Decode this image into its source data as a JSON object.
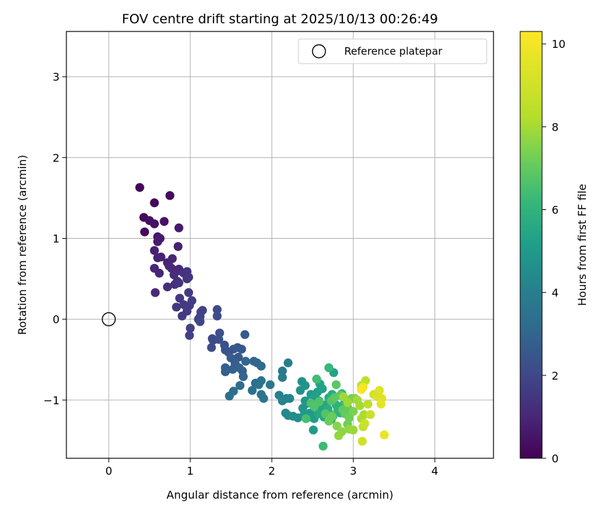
{
  "chart_data": {
    "type": "scatter",
    "title": "FOV centre drift starting at 2025/10/13 00:26:49",
    "xlabel": "Angular distance from reference (arcmin)",
    "ylabel": "Rotation from reference (arcmin)",
    "xlim": [
      -0.52,
      4.72
    ],
    "ylim": [
      -1.72,
      3.56
    ],
    "xticks": [
      0,
      1,
      2,
      3,
      4
    ],
    "yticks": [
      -1,
      0,
      1,
      2,
      3
    ],
    "ytick_labels": [
      "−1",
      "0",
      "1",
      "2",
      "3"
    ],
    "grid": true,
    "legend": {
      "position": "top-right",
      "entries": [
        "Reference platepar"
      ]
    },
    "reference_point": {
      "x": 0,
      "y": 0,
      "label": "Reference platepar"
    },
    "colorbar": {
      "label": "Hours from first FF file",
      "range": [
        0,
        10.3
      ],
      "ticks": [
        0,
        2,
        4,
        6,
        8,
        10
      ],
      "colormap": "viridis"
    },
    "points": [
      {
        "x": 0.38,
        "y": 1.63,
        "h": 0.1
      },
      {
        "x": 0.43,
        "y": 1.26,
        "h": 0.2
      },
      {
        "x": 0.44,
        "y": 1.08,
        "h": 0.3
      },
      {
        "x": 0.5,
        "y": 1.22,
        "h": 0.4
      },
      {
        "x": 0.56,
        "y": 1.44,
        "h": 0.2
      },
      {
        "x": 0.56,
        "y": 1.18,
        "h": 0.5
      },
      {
        "x": 0.6,
        "y": 1.02,
        "h": 0.6
      },
      {
        "x": 0.63,
        "y": 1.0,
        "h": 0.7
      },
      {
        "x": 0.6,
        "y": 0.96,
        "h": 0.8
      },
      {
        "x": 0.68,
        "y": 1.21,
        "h": 0.5
      },
      {
        "x": 0.75,
        "y": 1.53,
        "h": 0.3
      },
      {
        "x": 0.86,
        "y": 1.13,
        "h": 0.7
      },
      {
        "x": 0.56,
        "y": 0.85,
        "h": 0.9
      },
      {
        "x": 0.6,
        "y": 0.76,
        "h": 1.0
      },
      {
        "x": 0.64,
        "y": 0.77,
        "h": 1.0
      },
      {
        "x": 0.56,
        "y": 0.63,
        "h": 1.1
      },
      {
        "x": 0.62,
        "y": 0.57,
        "h": 1.1
      },
      {
        "x": 0.57,
        "y": 0.33,
        "h": 1.2
      },
      {
        "x": 0.72,
        "y": 0.7,
        "h": 1.0
      },
      {
        "x": 0.74,
        "y": 0.66,
        "h": 1.1
      },
      {
        "x": 0.78,
        "y": 0.75,
        "h": 1.1
      },
      {
        "x": 0.77,
        "y": 0.63,
        "h": 1.2
      },
      {
        "x": 0.85,
        "y": 0.9,
        "h": 0.9
      },
      {
        "x": 0.8,
        "y": 0.55,
        "h": 1.3
      },
      {
        "x": 0.84,
        "y": 0.47,
        "h": 1.4
      },
      {
        "x": 0.81,
        "y": 0.43,
        "h": 1.4
      },
      {
        "x": 0.72,
        "y": 0.4,
        "h": 1.3
      },
      {
        "x": 0.87,
        "y": 0.6,
        "h": 1.3
      },
      {
        "x": 0.86,
        "y": 0.62,
        "h": 1.2
      },
      {
        "x": 0.92,
        "y": 0.57,
        "h": 1.5
      },
      {
        "x": 0.96,
        "y": 0.59,
        "h": 1.5
      },
      {
        "x": 0.98,
        "y": 0.52,
        "h": 1.6
      },
      {
        "x": 0.96,
        "y": 0.5,
        "h": 1.6
      },
      {
        "x": 0.86,
        "y": 0.45,
        "h": 1.5
      },
      {
        "x": 0.87,
        "y": 0.26,
        "h": 1.6
      },
      {
        "x": 0.98,
        "y": 0.33,
        "h": 1.7
      },
      {
        "x": 0.92,
        "y": 0.18,
        "h": 1.7
      },
      {
        "x": 0.83,
        "y": 0.15,
        "h": 1.7
      },
      {
        "x": 0.9,
        "y": 0.04,
        "h": 1.8
      },
      {
        "x": 0.96,
        "y": 0.1,
        "h": 1.8
      },
      {
        "x": 0.99,
        "y": 0.17,
        "h": 1.8
      },
      {
        "x": 1.02,
        "y": 0.23,
        "h": 1.9
      },
      {
        "x": 1.0,
        "y": -0.11,
        "h": 2.0
      },
      {
        "x": 0.99,
        "y": -0.2,
        "h": 2.0
      },
      {
        "x": 1.1,
        "y": 0.0,
        "h": 2.0
      },
      {
        "x": 1.12,
        "y": 0.03,
        "h": 2.1
      },
      {
        "x": 1.13,
        "y": 0.09,
        "h": 2.1
      },
      {
        "x": 1.15,
        "y": 0.11,
        "h": 2.1
      },
      {
        "x": 1.12,
        "y": -0.03,
        "h": 2.2
      },
      {
        "x": 1.27,
        "y": -0.24,
        "h": 2.3
      },
      {
        "x": 1.28,
        "y": -0.26,
        "h": 2.3
      },
      {
        "x": 1.26,
        "y": -0.35,
        "h": 2.4
      },
      {
        "x": 1.33,
        "y": 0.12,
        "h": 2.3
      },
      {
        "x": 1.33,
        "y": 0.04,
        "h": 2.4
      },
      {
        "x": 1.36,
        "y": -0.17,
        "h": 2.5
      },
      {
        "x": 1.35,
        "y": -0.25,
        "h": 2.5
      },
      {
        "x": 1.42,
        "y": -0.32,
        "h": 2.6
      },
      {
        "x": 1.43,
        "y": -0.38,
        "h": 2.6
      },
      {
        "x": 1.47,
        "y": -0.41,
        "h": 2.7
      },
      {
        "x": 1.53,
        "y": -0.37,
        "h": 2.7
      },
      {
        "x": 1.58,
        "y": -0.35,
        "h": 2.8
      },
      {
        "x": 1.63,
        "y": -0.37,
        "h": 2.8
      },
      {
        "x": 1.67,
        "y": -0.19,
        "h": 2.9
      },
      {
        "x": 1.59,
        "y": -0.47,
        "h": 2.9
      },
      {
        "x": 1.5,
        "y": -0.48,
        "h": 3.0
      },
      {
        "x": 1.55,
        "y": -0.55,
        "h": 3.0
      },
      {
        "x": 1.43,
        "y": -0.6,
        "h": 3.1
      },
      {
        "x": 1.43,
        "y": -0.65,
        "h": 3.1
      },
      {
        "x": 1.52,
        "y": -0.62,
        "h": 3.1
      },
      {
        "x": 1.6,
        "y": -0.6,
        "h": 3.2
      },
      {
        "x": 1.64,
        "y": -0.64,
        "h": 3.2
      },
      {
        "x": 1.65,
        "y": -0.71,
        "h": 3.3
      },
      {
        "x": 1.68,
        "y": -0.52,
        "h": 3.3
      },
      {
        "x": 1.78,
        "y": -0.52,
        "h": 3.4
      },
      {
        "x": 1.82,
        "y": -0.54,
        "h": 3.4
      },
      {
        "x": 1.87,
        "y": -0.58,
        "h": 3.5
      },
      {
        "x": 1.61,
        "y": -0.82,
        "h": 3.6
      },
      {
        "x": 1.53,
        "y": -0.89,
        "h": 3.7
      },
      {
        "x": 1.48,
        "y": -0.95,
        "h": 3.8
      },
      {
        "x": 1.8,
        "y": -0.79,
        "h": 3.7
      },
      {
        "x": 1.76,
        "y": -0.88,
        "h": 3.8
      },
      {
        "x": 1.87,
        "y": -0.76,
        "h": 3.9
      },
      {
        "x": 1.84,
        "y": -0.81,
        "h": 3.9
      },
      {
        "x": 1.87,
        "y": -0.93,
        "h": 4.0
      },
      {
        "x": 1.9,
        "y": -0.98,
        "h": 4.0
      },
      {
        "x": 1.98,
        "y": -0.81,
        "h": 4.1
      },
      {
        "x": 2.13,
        "y": -0.64,
        "h": 4.2
      },
      {
        "x": 2.13,
        "y": -0.72,
        "h": 4.3
      },
      {
        "x": 2.2,
        "y": -0.54,
        "h": 4.4
      },
      {
        "x": 2.09,
        "y": -0.94,
        "h": 4.5
      },
      {
        "x": 2.13,
        "y": -1.01,
        "h": 4.6
      },
      {
        "x": 2.18,
        "y": -0.98,
        "h": 4.7
      },
      {
        "x": 2.22,
        "y": -0.98,
        "h": 4.7
      },
      {
        "x": 2.17,
        "y": -1.16,
        "h": 4.8
      },
      {
        "x": 2.2,
        "y": -1.19,
        "h": 4.9
      },
      {
        "x": 2.26,
        "y": -1.2,
        "h": 5.0
      },
      {
        "x": 2.32,
        "y": -1.22,
        "h": 5.0
      },
      {
        "x": 2.37,
        "y": -0.77,
        "h": 5.1
      },
      {
        "x": 2.35,
        "y": -0.88,
        "h": 5.2
      },
      {
        "x": 2.41,
        "y": -0.82,
        "h": 5.3
      },
      {
        "x": 2.38,
        "y": -1.1,
        "h": 5.3
      },
      {
        "x": 2.41,
        "y": -1.01,
        "h": 5.4
      },
      {
        "x": 2.44,
        "y": -1.04,
        "h": 5.4
      },
      {
        "x": 2.4,
        "y": -1.17,
        "h": 5.5
      },
      {
        "x": 2.47,
        "y": -1.16,
        "h": 5.5
      },
      {
        "x": 2.48,
        "y": -1.21,
        "h": 5.6
      },
      {
        "x": 2.51,
        "y": -1.37,
        "h": 5.6
      },
      {
        "x": 2.52,
        "y": -1.23,
        "h": 5.7
      },
      {
        "x": 2.48,
        "y": -0.93,
        "h": 5.7
      },
      {
        "x": 2.53,
        "y": -0.95,
        "h": 5.8
      },
      {
        "x": 2.56,
        "y": -0.9,
        "h": 5.8
      },
      {
        "x": 2.59,
        "y": -0.8,
        "h": 5.9
      },
      {
        "x": 2.62,
        "y": -0.86,
        "h": 5.9
      },
      {
        "x": 2.58,
        "y": -1.01,
        "h": 6.0
      },
      {
        "x": 2.6,
        "y": -1.08,
        "h": 6.0
      },
      {
        "x": 2.62,
        "y": -1.13,
        "h": 6.1
      },
      {
        "x": 2.66,
        "y": -1.06,
        "h": 6.1
      },
      {
        "x": 2.57,
        "y": -1.17,
        "h": 6.2
      },
      {
        "x": 2.64,
        "y": -1.21,
        "h": 6.2
      },
      {
        "x": 2.7,
        "y": -0.97,
        "h": 6.3
      },
      {
        "x": 2.74,
        "y": -0.93,
        "h": 6.3
      },
      {
        "x": 2.69,
        "y": -1.11,
        "h": 6.4
      },
      {
        "x": 2.71,
        "y": -1.17,
        "h": 6.4
      },
      {
        "x": 2.75,
        "y": -1.2,
        "h": 6.5
      },
      {
        "x": 2.73,
        "y": -1.24,
        "h": 6.5
      },
      {
        "x": 2.79,
        "y": -1.06,
        "h": 6.6
      },
      {
        "x": 2.81,
        "y": -1.12,
        "h": 6.6
      },
      {
        "x": 2.84,
        "y": -1.16,
        "h": 6.7
      },
      {
        "x": 2.86,
        "y": -0.92,
        "h": 6.7
      },
      {
        "x": 2.89,
        "y": -1.04,
        "h": 6.8
      },
      {
        "x": 2.63,
        "y": -1.57,
        "h": 7.0
      },
      {
        "x": 2.76,
        "y": -0.66,
        "h": 6.0
      },
      {
        "x": 2.7,
        "y": -0.6,
        "h": 6.9
      },
      {
        "x": 2.55,
        "y": -0.74,
        "h": 7.1
      },
      {
        "x": 2.42,
        "y": -1.23,
        "h": 7.2
      },
      {
        "x": 2.48,
        "y": -1.04,
        "h": 7.3
      },
      {
        "x": 2.52,
        "y": -1.08,
        "h": 7.4
      },
      {
        "x": 2.58,
        "y": -1.02,
        "h": 7.4
      },
      {
        "x": 2.66,
        "y": -1.17,
        "h": 7.5
      },
      {
        "x": 2.73,
        "y": -1.01,
        "h": 7.5
      },
      {
        "x": 2.77,
        "y": -0.97,
        "h": 7.6
      },
      {
        "x": 2.79,
        "y": -0.81,
        "h": 7.6
      },
      {
        "x": 2.84,
        "y": -0.94,
        "h": 7.7
      },
      {
        "x": 2.87,
        "y": -1.12,
        "h": 7.7
      },
      {
        "x": 2.9,
        "y": -1.17,
        "h": 7.8
      },
      {
        "x": 2.93,
        "y": -1.09,
        "h": 7.8
      },
      {
        "x": 2.7,
        "y": -1.26,
        "h": 7.9
      },
      {
        "x": 2.74,
        "y": -1.2,
        "h": 7.9
      },
      {
        "x": 2.93,
        "y": -1.3,
        "h": 8.0
      },
      {
        "x": 2.95,
        "y": -1.22,
        "h": 8.0
      },
      {
        "x": 2.98,
        "y": -0.98,
        "h": 8.1
      },
      {
        "x": 3.0,
        "y": -1.14,
        "h": 8.2
      },
      {
        "x": 3.02,
        "y": -0.98,
        "h": 8.3
      },
      {
        "x": 2.8,
        "y": -1.32,
        "h": 8.4
      },
      {
        "x": 2.86,
        "y": -1.39,
        "h": 8.5
      },
      {
        "x": 2.82,
        "y": -1.44,
        "h": 8.6
      },
      {
        "x": 2.95,
        "y": -1.36,
        "h": 8.6
      },
      {
        "x": 3.0,
        "y": -1.37,
        "h": 8.7
      },
      {
        "x": 2.88,
        "y": -0.96,
        "h": 8.8
      },
      {
        "x": 2.93,
        "y": -1.03,
        "h": 8.8
      },
      {
        "x": 3.05,
        "y": -1.0,
        "h": 8.9
      },
      {
        "x": 3.08,
        "y": -1.07,
        "h": 8.9
      },
      {
        "x": 3.1,
        "y": -1.23,
        "h": 9.0
      },
      {
        "x": 3.13,
        "y": -1.18,
        "h": 9.0
      },
      {
        "x": 3.1,
        "y": -0.82,
        "h": 9.2
      },
      {
        "x": 3.15,
        "y": -0.76,
        "h": 9.3
      },
      {
        "x": 3.18,
        "y": -1.05,
        "h": 9.3
      },
      {
        "x": 3.12,
        "y": -1.33,
        "h": 9.4
      },
      {
        "x": 3.14,
        "y": -1.29,
        "h": 9.5
      },
      {
        "x": 3.21,
        "y": -1.18,
        "h": 9.5
      },
      {
        "x": 3.11,
        "y": -1.51,
        "h": 9.6
      },
      {
        "x": 3.25,
        "y": -0.93,
        "h": 9.6
      },
      {
        "x": 3.3,
        "y": -0.96,
        "h": 9.7
      },
      {
        "x": 3.32,
        "y": -0.88,
        "h": 9.8
      },
      {
        "x": 3.35,
        "y": -0.98,
        "h": 9.8
      },
      {
        "x": 3.34,
        "y": -1.05,
        "h": 9.9
      },
      {
        "x": 3.38,
        "y": -1.43,
        "h": 10.0
      },
      {
        "x": 3.12,
        "y": -0.84,
        "h": 10.1
      },
      {
        "x": 3.1,
        "y": -0.87,
        "h": 10.2
      }
    ]
  }
}
